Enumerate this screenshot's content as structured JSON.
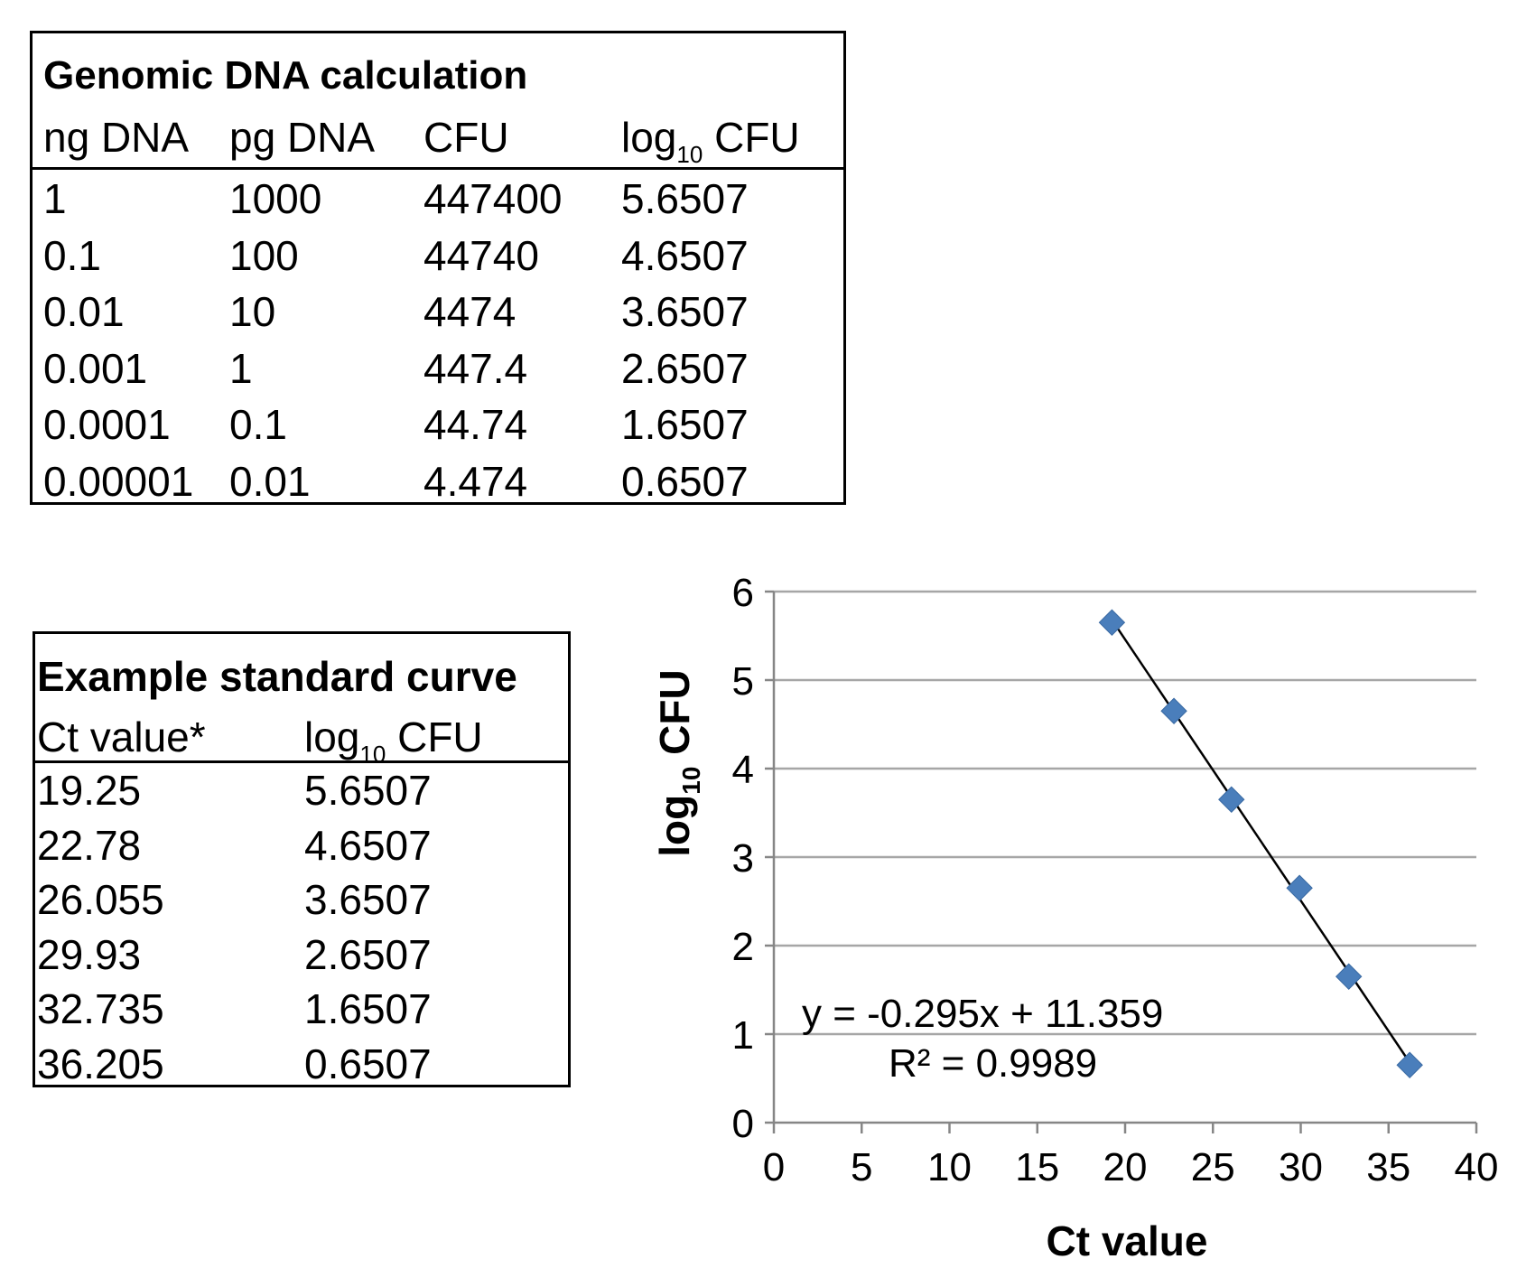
{
  "genomic_table": {
    "title": "Genomic DNA calculation",
    "headers": {
      "ng": "ng DNA",
      "pg": "pg DNA",
      "cfu": "CFU",
      "log_prefix": "log",
      "log_sub": "10",
      "log_suffix": " CFU"
    },
    "rows": [
      [
        "1",
        "1000",
        "447400",
        "5.6507"
      ],
      [
        "0.1",
        "100",
        "44740",
        "4.6507"
      ],
      [
        "0.01",
        "10",
        "4474",
        "3.6507"
      ],
      [
        "0.001",
        "1",
        "447.4",
        "2.6507"
      ],
      [
        "0.0001",
        "0.1",
        "44.74",
        "1.6507"
      ],
      [
        "0.00001",
        "0.01",
        "4.474",
        "0.6507"
      ]
    ]
  },
  "standard_table": {
    "title": "Example standard curve",
    "headers": {
      "ct": "Ct value*",
      "log_prefix": "log",
      "log_sub": "10",
      "log_suffix": " CFU"
    },
    "rows": [
      [
        "19.25",
        "5.6507"
      ],
      [
        "22.78",
        "4.6507"
      ],
      [
        "26.055",
        "3.6507"
      ],
      [
        "29.93",
        "2.6507"
      ],
      [
        "32.735",
        "1.6507"
      ],
      [
        "36.205",
        "0.6507"
      ]
    ]
  },
  "chart_data": {
    "type": "scatter",
    "title": "",
    "xlabel": "Ct value",
    "ylabel_prefix": "log",
    "ylabel_sub": "10",
    "ylabel_suffix": " CFU",
    "xlim": [
      0,
      40
    ],
    "ylim": [
      0,
      6
    ],
    "xticks": [
      "0",
      "5",
      "10",
      "15",
      "20",
      "25",
      "30",
      "35",
      "40"
    ],
    "yticks": [
      "0",
      "1",
      "2",
      "3",
      "4",
      "5",
      "6"
    ],
    "grid": "horizontal",
    "series": [
      {
        "name": "standard curve",
        "x": [
          19.25,
          22.78,
          26.055,
          29.93,
          32.735,
          36.205
        ],
        "y": [
          5.6507,
          4.6507,
          3.6507,
          2.6507,
          1.6507,
          0.6507
        ],
        "marker": "diamond",
        "color": "#4a7ebb"
      }
    ],
    "trendline": {
      "type": "linear",
      "slope": -0.295,
      "intercept": 11.359,
      "x_range": [
        19.25,
        36.205
      ],
      "color": "#000000",
      "equation": "y = -0.295x + 11.359",
      "r_squared": "R² = 0.9989"
    }
  }
}
